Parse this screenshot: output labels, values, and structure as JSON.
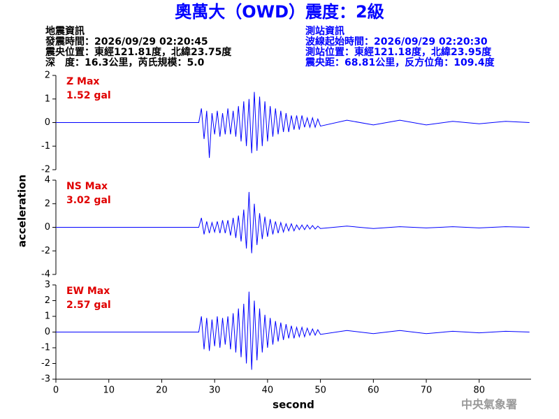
{
  "title": "奧萬大（OWD）震度：2級",
  "event_info": [
    "地震資訊",
    "發震時間：2026/09/29 02:20:45",
    "震央位置：東經121.81度，北緯23.75度",
    "深　度：16.3公里，芮氏規模：5.0"
  ],
  "station_info": [
    "測站資訊",
    "波線起始時間：2026/09/29 02:20:30",
    "測站位置：東經121.18度，北緯23.95度",
    "震央距：68.81公里，反方位角：109.4度"
  ],
  "ylabel": "acceleration",
  "footer": "中央氣象署",
  "chart_data": [
    {
      "type": "line",
      "annotation": "Z Max",
      "max_label": "1.52 gal",
      "color": "#0000ff",
      "xlim": [
        0,
        89.8
      ],
      "ylim": [
        -2,
        2
      ],
      "yticks": [
        -2,
        -1,
        0,
        1,
        2
      ],
      "x": [
        0,
        27,
        27.5,
        28,
        28.5,
        29,
        29.5,
        30,
        30.5,
        31,
        31.5,
        32,
        32.5,
        33,
        33.5,
        34,
        34.5,
        35,
        35.5,
        36,
        36.5,
        37,
        37.5,
        38,
        38.5,
        39,
        39.5,
        40,
        40.5,
        41,
        41.5,
        42,
        42.5,
        43,
        43.5,
        44,
        44.5,
        45,
        45.5,
        46,
        46.5,
        47,
        47.5,
        48,
        48.5,
        49,
        49.5,
        50,
        55,
        60,
        65,
        70,
        75,
        80,
        85,
        89.5
      ],
      "values": [
        0,
        0,
        0.6,
        -0.7,
        0.5,
        -1.5,
        0.4,
        -0.5,
        0.5,
        -0.6,
        0.4,
        -0.5,
        0.6,
        -0.5,
        0.5,
        -0.6,
        0.7,
        -0.8,
        0.9,
        -1.0,
        1.0,
        -1.3,
        1.3,
        -1.2,
        1.1,
        -1.0,
        0.9,
        -0.8,
        0.7,
        -0.6,
        0.6,
        -0.5,
        0.5,
        -0.4,
        0.4,
        -0.4,
        0.3,
        -0.3,
        0.3,
        -0.3,
        0.3,
        -0.2,
        0.2,
        -0.2,
        0.2,
        -0.2,
        0.15,
        -0.15,
        0.1,
        -0.1,
        0.1,
        -0.1,
        0.05,
        -0.05,
        0.05,
        0
      ]
    },
    {
      "type": "line",
      "annotation": "NS Max",
      "max_label": "3.02 gal",
      "color": "#0000ff",
      "xlim": [
        0,
        89.8
      ],
      "ylim": [
        -4,
        4
      ],
      "yticks": [
        -4,
        -2,
        0,
        2,
        4
      ],
      "x": [
        0,
        27,
        27.5,
        28,
        28.5,
        29,
        29.5,
        30,
        30.5,
        31,
        31.5,
        32,
        32.5,
        33,
        33.5,
        34,
        34.5,
        35,
        35.5,
        36,
        36.5,
        37,
        37.5,
        38,
        38.5,
        39,
        39.5,
        40,
        40.5,
        41,
        41.5,
        42,
        42.5,
        43,
        43.5,
        44,
        44.5,
        45,
        45.5,
        46,
        46.5,
        47,
        47.5,
        48,
        48.5,
        49,
        49.5,
        50,
        55,
        60,
        65,
        70,
        75,
        80,
        85,
        89.5
      ],
      "values": [
        0,
        0,
        0.8,
        -0.6,
        0.5,
        -0.5,
        0.4,
        -0.4,
        0.5,
        -0.5,
        0.6,
        -0.5,
        0.6,
        -0.7,
        0.8,
        -0.9,
        1.0,
        -1.2,
        1.5,
        -1.8,
        3.0,
        -2.2,
        2.0,
        -1.5,
        1.2,
        -1.0,
        0.9,
        -0.8,
        0.7,
        -0.6,
        0.5,
        -0.5,
        0.4,
        -0.4,
        0.3,
        -0.3,
        0.3,
        -0.3,
        0.2,
        -0.2,
        0.2,
        -0.2,
        0.2,
        -0.15,
        0.15,
        -0.15,
        0.1,
        -0.1,
        0.1,
        -0.1,
        0.05,
        -0.05,
        0.05,
        -0.05,
        0.05,
        0
      ]
    },
    {
      "type": "line",
      "annotation": "EW Max",
      "max_label": "2.57 gal",
      "color": "#0000ff",
      "xlabel": "second",
      "xlim": [
        0,
        89.8
      ],
      "xticks": [
        0,
        10,
        20,
        30,
        40,
        50,
        60,
        70,
        80
      ],
      "ylim": [
        -3,
        3
      ],
      "yticks": [
        -3,
        -2,
        -1,
        0,
        1,
        2,
        3
      ],
      "x": [
        0,
        27,
        27.5,
        28,
        28.5,
        29,
        29.5,
        30,
        30.5,
        31,
        31.5,
        32,
        32.5,
        33,
        33.5,
        34,
        34.5,
        35,
        35.5,
        36,
        36.5,
        37,
        37.5,
        38,
        38.5,
        39,
        39.5,
        40,
        40.5,
        41,
        41.5,
        42,
        42.5,
        43,
        43.5,
        44,
        44.5,
        45,
        45.5,
        46,
        46.5,
        47,
        47.5,
        48,
        48.5,
        49,
        49.5,
        50,
        55,
        60,
        65,
        70,
        75,
        80,
        85,
        89.5
      ],
      "values": [
        0,
        0,
        1.0,
        -1.1,
        0.9,
        -1.2,
        0.8,
        -0.9,
        1.0,
        -1.0,
        0.9,
        -0.8,
        1.0,
        -1.1,
        1.2,
        -1.3,
        1.5,
        -1.6,
        1.8,
        -2.0,
        2.57,
        -2.4,
        2.0,
        -1.8,
        1.5,
        -1.3,
        1.1,
        -1.0,
        0.9,
        -0.8,
        0.7,
        -0.6,
        0.6,
        -0.5,
        0.5,
        -0.4,
        0.4,
        -0.4,
        0.3,
        -0.3,
        0.3,
        -0.3,
        0.25,
        -0.2,
        0.2,
        -0.2,
        0.15,
        -0.15,
        0.1,
        -0.1,
        0.1,
        -0.1,
        0.05,
        -0.05,
        0.05,
        0
      ]
    }
  ]
}
